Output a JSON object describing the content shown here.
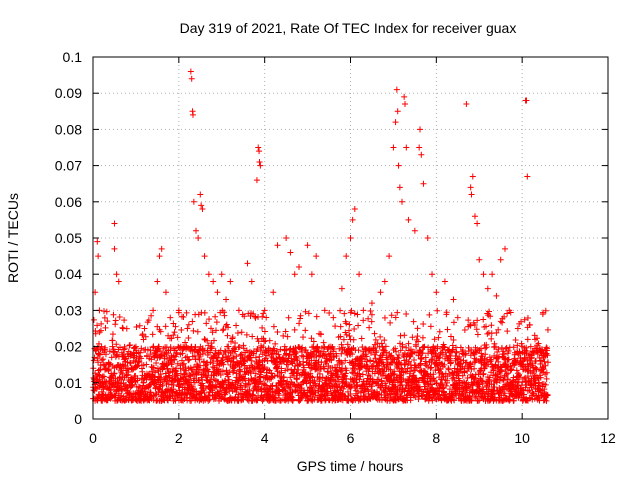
{
  "chart_data": {
    "type": "scatter",
    "title": "Day 319 of 2021, Rate Of TEC Index for receiver guax",
    "xlabel": "GPS time / hours",
    "ylabel": "ROTI / TECUs",
    "xlim": [
      0,
      12
    ],
    "ylim": [
      0,
      0.1
    ],
    "x_ticks": [
      0,
      2,
      4,
      6,
      8,
      10,
      12
    ],
    "y_ticks": [
      0,
      0.01,
      0.02,
      0.03,
      0.04,
      0.05,
      0.06,
      0.07,
      0.08,
      0.09,
      0.1
    ],
    "x_tick_labels": [
      "0",
      "2",
      "4",
      "6",
      "8",
      "10",
      "12"
    ],
    "y_tick_labels": [
      "0",
      "0.01",
      "0.02",
      "0.03",
      "0.04",
      "0.05",
      "0.06",
      "0.07",
      "0.08",
      "0.09",
      "0.1"
    ],
    "grid": true,
    "marker": "+",
    "color": "#ff0000",
    "data_range_x": [
      0,
      10.6
    ],
    "typical_band_y": [
      0.005,
      0.02
    ],
    "series": [
      {
        "name": "ROTI",
        "points": [
          [
            0.05,
            0.035
          ],
          [
            0.1,
            0.049
          ],
          [
            0.12,
            0.045
          ],
          [
            0.15,
            0.03
          ],
          [
            0.2,
            0.02
          ],
          [
            0.3,
            0.015
          ],
          [
            0.5,
            0.054
          ],
          [
            0.5,
            0.047
          ],
          [
            0.55,
            0.04
          ],
          [
            0.6,
            0.038
          ],
          [
            0.7,
            0.025
          ],
          [
            0.8,
            0.018
          ],
          [
            1.0,
            0.02
          ],
          [
            1.2,
            0.025
          ],
          [
            1.4,
            0.03
          ],
          [
            1.5,
            0.038
          ],
          [
            1.55,
            0.045
          ],
          [
            1.6,
            0.047
          ],
          [
            1.7,
            0.035
          ],
          [
            1.8,
            0.028
          ],
          [
            1.9,
            0.024
          ],
          [
            2.0,
            0.03
          ],
          [
            2.1,
            0.02
          ],
          [
            2.2,
            0.025
          ],
          [
            2.28,
            0.096
          ],
          [
            2.3,
            0.094
          ],
          [
            2.32,
            0.085
          ],
          [
            2.33,
            0.084
          ],
          [
            2.35,
            0.06
          ],
          [
            2.4,
            0.052
          ],
          [
            2.45,
            0.05
          ],
          [
            2.5,
            0.062
          ],
          [
            2.52,
            0.059
          ],
          [
            2.55,
            0.058
          ],
          [
            2.6,
            0.045
          ],
          [
            2.7,
            0.04
          ],
          [
            2.8,
            0.038
          ],
          [
            2.9,
            0.035
          ],
          [
            3.0,
            0.04
          ],
          [
            3.1,
            0.033
          ],
          [
            3.2,
            0.038
          ],
          [
            3.4,
            0.03
          ],
          [
            3.6,
            0.043
          ],
          [
            3.7,
            0.038
          ],
          [
            3.82,
            0.066
          ],
          [
            3.85,
            0.075
          ],
          [
            3.87,
            0.074
          ],
          [
            3.88,
            0.071
          ],
          [
            3.9,
            0.07
          ],
          [
            4.0,
            0.03
          ],
          [
            4.2,
            0.035
          ],
          [
            4.3,
            0.048
          ],
          [
            4.5,
            0.05
          ],
          [
            4.6,
            0.046
          ],
          [
            4.7,
            0.04
          ],
          [
            4.8,
            0.042
          ],
          [
            5.0,
            0.048
          ],
          [
            5.1,
            0.04
          ],
          [
            5.2,
            0.045
          ],
          [
            5.4,
            0.03
          ],
          [
            5.6,
            0.028
          ],
          [
            5.8,
            0.036
          ],
          [
            5.9,
            0.045
          ],
          [
            6.0,
            0.05
          ],
          [
            6.05,
            0.055
          ],
          [
            6.1,
            0.058
          ],
          [
            6.2,
            0.04
          ],
          [
            6.3,
            0.03
          ],
          [
            6.5,
            0.032
          ],
          [
            6.7,
            0.035
          ],
          [
            6.8,
            0.038
          ],
          [
            6.9,
            0.045
          ],
          [
            7.0,
            0.075
          ],
          [
            7.05,
            0.082
          ],
          [
            7.08,
            0.091
          ],
          [
            7.1,
            0.085
          ],
          [
            7.12,
            0.07
          ],
          [
            7.15,
            0.064
          ],
          [
            7.2,
            0.06
          ],
          [
            7.25,
            0.089
          ],
          [
            7.27,
            0.087
          ],
          [
            7.3,
            0.075
          ],
          [
            7.35,
            0.055
          ],
          [
            7.5,
            0.052
          ],
          [
            7.6,
            0.075
          ],
          [
            7.62,
            0.08
          ],
          [
            7.65,
            0.073
          ],
          [
            7.7,
            0.065
          ],
          [
            7.8,
            0.05
          ],
          [
            7.9,
            0.04
          ],
          [
            8.0,
            0.035
          ],
          [
            8.2,
            0.038
          ],
          [
            8.4,
            0.033
          ],
          [
            8.5,
            0.028
          ],
          [
            8.7,
            0.087
          ],
          [
            8.8,
            0.064
          ],
          [
            8.82,
            0.062
          ],
          [
            8.85,
            0.067
          ],
          [
            8.9,
            0.056
          ],
          [
            8.95,
            0.054
          ],
          [
            9.0,
            0.044
          ],
          [
            9.1,
            0.04
          ],
          [
            9.2,
            0.036
          ],
          [
            9.3,
            0.04
          ],
          [
            9.4,
            0.034
          ],
          [
            9.5,
            0.044
          ],
          [
            9.6,
            0.047
          ],
          [
            9.7,
            0.03
          ],
          [
            9.9,
            0.025
          ],
          [
            10.0,
            0.02
          ],
          [
            10.08,
            0.088
          ],
          [
            10.1,
            0.088
          ],
          [
            10.12,
            0.067
          ],
          [
            10.2,
            0.02
          ],
          [
            10.3,
            0.022
          ],
          [
            10.5,
            0.018
          ]
        ]
      }
    ]
  }
}
